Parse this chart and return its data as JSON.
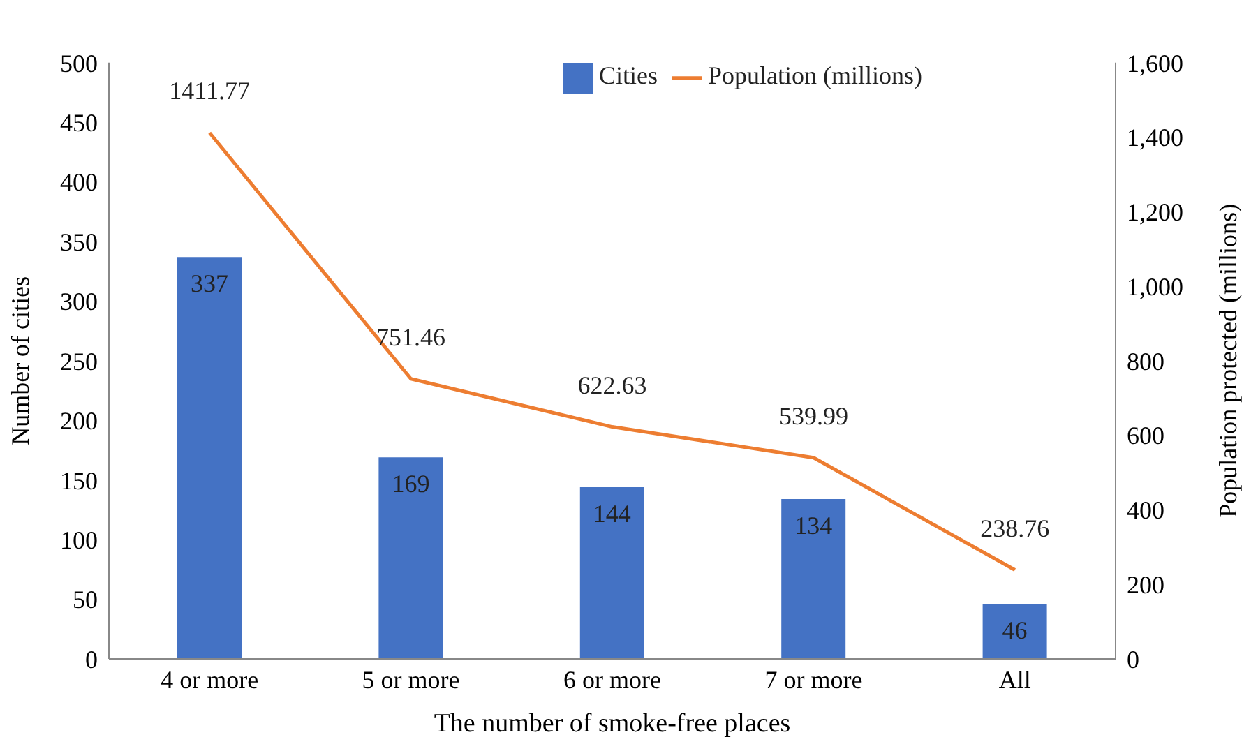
{
  "chart_data": {
    "type": "bar",
    "xlabel": "The number of smoke-free places",
    "ylabel": "Number of cities",
    "y2label": "Population protected (millions)",
    "categories": [
      "4 or more",
      "5 or more",
      "6 or more",
      "7 or more",
      "All"
    ],
    "series": [
      {
        "name": "Cities",
        "color": "#4472c4",
        "values": [
          337,
          169,
          144,
          134,
          46
        ]
      },
      {
        "name": "Population (millions)",
        "type": "line",
        "axis": "y2",
        "color": "#ed7d31",
        "values": [
          1411.77,
          751.46,
          622.63,
          539.99,
          238.76
        ]
      }
    ],
    "ylim": [
      0,
      500
    ],
    "yticks": [
      0,
      50,
      100,
      150,
      200,
      250,
      300,
      350,
      400,
      450,
      500
    ],
    "y2lim": [
      0,
      1600
    ],
    "y2ticks": [
      0,
      200,
      400,
      600,
      800,
      {
        "value": 1000,
        "label": "1,000"
      },
      {
        "value": 1200,
        "label": "1,200"
      },
      {
        "value": 1400,
        "label": "1,400"
      },
      {
        "value": 1600,
        "label": "1,600"
      }
    ],
    "data_labels": true,
    "legend": "top right",
    "marker": "none",
    "line_style": "solid"
  }
}
